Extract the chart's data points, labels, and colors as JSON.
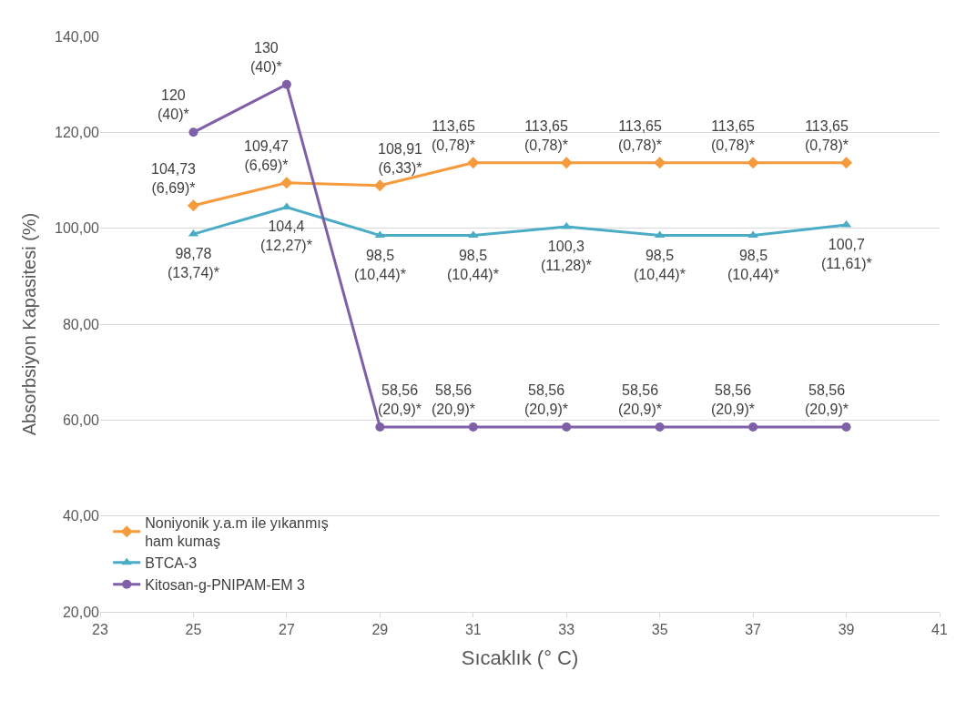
{
  "chart_data": {
    "type": "line",
    "xlabel": "Sıcaklık (° C)",
    "ylabel": "Absorbsiyon Kapasitesi (%)",
    "x": [
      25,
      27,
      29,
      31,
      33,
      35,
      37,
      39
    ],
    "xlim": [
      23,
      41
    ],
    "xticks": [
      23,
      25,
      27,
      29,
      31,
      33,
      35,
      37,
      39,
      41
    ],
    "ylim": [
      20,
      140
    ],
    "yticks": [
      {
        "value": 20,
        "label": "20,00"
      },
      {
        "value": 40,
        "label": "40,00"
      },
      {
        "value": 60,
        "label": "60,00"
      },
      {
        "value": 80,
        "label": "80,00"
      },
      {
        "value": 100,
        "label": "100,00"
      },
      {
        "value": 120,
        "label": "120,00"
      },
      {
        "value": 140,
        "label": "140,00"
      }
    ],
    "grid": "y",
    "legend": "bottom left",
    "series": [
      {
        "name": "Noniyonik y.a.m ile yıkanmış\nham kumaş",
        "color": "#f59b3d",
        "marker": "diamond",
        "values": [
          104.73,
          109.47,
          108.91,
          113.65,
          113.65,
          113.65,
          113.65,
          113.65
        ],
        "value_labels": [
          "104,73\n(6,69)*",
          "109,47\n(6,69)*",
          "108,91\n(6,33)*",
          "113,65\n(0,78)*",
          "113,65\n(0,78)*",
          "113,65\n(0,78)*",
          "113,65\n(0,78)*",
          "113,65\n(0,78)*"
        ]
      },
      {
        "name": "BTCA-3",
        "color": "#4bacc6",
        "marker": "triangle",
        "values": [
          98.78,
          104.4,
          98.5,
          98.5,
          100.3,
          98.5,
          98.5,
          100.7
        ],
        "value_labels": [
          "98,78\n(13,74)*",
          "104,4\n(12,27)*",
          "98,5\n(10,44)*",
          "98,5\n(10,44)*",
          "100,3\n(11,28)*",
          "98,5\n(10,44)*",
          "98,5\n(10,44)*",
          "100,7\n(11,61)*"
        ]
      },
      {
        "name": "Kitosan-g-PNIPAM-EM 3",
        "color": "#7f60a8",
        "marker": "circle",
        "values": [
          120,
          130,
          58.56,
          58.56,
          58.56,
          58.56,
          58.56,
          58.56
        ],
        "value_labels": [
          "120\n(40)*",
          "130\n(40)*",
          "58,56\n(20,9)*",
          "58,56\n(20,9)*",
          "58,56\n(20,9)*",
          "58,56\n(20,9)*",
          "58,56\n(20,9)*",
          "58,56\n(20,9)*"
        ]
      }
    ]
  }
}
